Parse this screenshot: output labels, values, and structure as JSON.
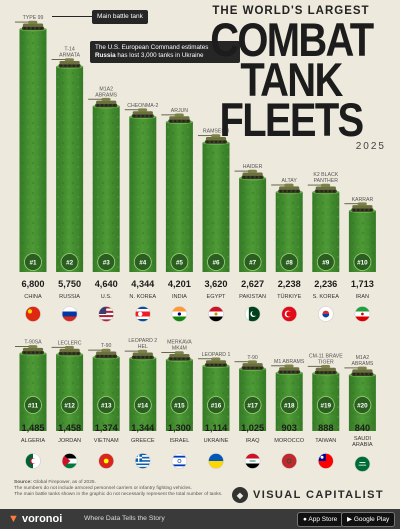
{
  "header": {
    "title_top": "THE WORLD'S LARGEST",
    "title_line1": "COMBAT",
    "title_line2": "TANK FLEETS",
    "year": "2025"
  },
  "annotations": {
    "main_battle_tank": "Main battle tank",
    "eucom_line1": "The U.S. European Command estimates",
    "eucom_bold": "Russia",
    "eucom_line2": " has lost 3,000 tanks in Ukraine"
  },
  "chart_data": {
    "type": "bar",
    "ylim": [
      0,
      7000
    ],
    "rows": [
      {
        "items": [
          {
            "rank": "#1",
            "country": "CHINA",
            "value": 6800,
            "value_label": "6,800",
            "tank": "TYPE 99"
          },
          {
            "rank": "#2",
            "country": "RUSSIA",
            "value": 5750,
            "value_label": "5,750",
            "tank": "T-14 ARMATA"
          },
          {
            "rank": "#3",
            "country": "U.S.",
            "value": 4640,
            "value_label": "4,640",
            "tank": "M1A2 ABRAMS"
          },
          {
            "rank": "#4",
            "country": "N. KOREA",
            "value": 4344,
            "value_label": "4,344",
            "tank": "CHEONMA-2"
          },
          {
            "rank": "#5",
            "country": "INDIA",
            "value": 4201,
            "value_label": "4,201",
            "tank": "ARJUN"
          },
          {
            "rank": "#6",
            "country": "EGYPT",
            "value": 3620,
            "value_label": "3,620",
            "tank": "RAMSES II"
          },
          {
            "rank": "#7",
            "country": "PAKISTAN",
            "value": 2627,
            "value_label": "2,627",
            "tank": "HAIDER"
          },
          {
            "rank": "#8",
            "country": "TÜRKIYE",
            "value": 2238,
            "value_label": "2,238",
            "tank": "ALTAY"
          },
          {
            "rank": "#9",
            "country": "S. KOREA",
            "value": 2236,
            "value_label": "2,236",
            "tank": "K2 BLACK PANTHER"
          },
          {
            "rank": "#10",
            "country": "IRAN",
            "value": 1713,
            "value_label": "1,713",
            "tank": "KARRAR"
          }
        ]
      },
      {
        "items": [
          {
            "rank": "#11",
            "country": "ALGERIA",
            "value": 1485,
            "value_label": "1,485",
            "tank": "T-90SA"
          },
          {
            "rank": "#12",
            "country": "JORDAN",
            "value": 1458,
            "value_label": "1,458",
            "tank": "LECLERC"
          },
          {
            "rank": "#13",
            "country": "VIETNAM",
            "value": 1374,
            "value_label": "1,374",
            "tank": "T-90"
          },
          {
            "rank": "#14",
            "country": "GREECE",
            "value": 1344,
            "value_label": "1,344",
            "tank": "LEOPARD 2 HEL"
          },
          {
            "rank": "#15",
            "country": "ISRAEL",
            "value": 1300,
            "value_label": "1,300",
            "tank": "MERKAVA MK4M"
          },
          {
            "rank": "#16",
            "country": "UKRAINE",
            "value": 1114,
            "value_label": "1,114",
            "tank": "LEOPARD 1"
          },
          {
            "rank": "#17",
            "country": "IRAQ",
            "value": 1025,
            "value_label": "1,025",
            "tank": "T-90"
          },
          {
            "rank": "#18",
            "country": "MOROCCO",
            "value": 903,
            "value_label": "903",
            "tank": "M1 ABRAMS"
          },
          {
            "rank": "#19",
            "country": "TAIWAN",
            "value": 888,
            "value_label": "888",
            "tank": "CM-11 BRAVE TIGER"
          },
          {
            "rank": "#20",
            "country": "SAUDI ARABIA",
            "value": 840,
            "value_label": "840",
            "tank": "M1A2 ABRAMS"
          }
        ]
      }
    ]
  },
  "colors": {
    "bar": "#3f8a2e",
    "bar_light": "#5aa53f",
    "rank_circle": "#2e6b22",
    "tank_body": "#5a6033",
    "background": "#ede9dc"
  },
  "flag_icons": {
    "CHINA": "china-flag-icon",
    "RUSSIA": "russia-flag-icon",
    "U.S.": "usa-flag-icon",
    "N. KOREA": "north-korea-flag-icon",
    "INDIA": "india-flag-icon",
    "EGYPT": "egypt-flag-icon",
    "PAKISTAN": "pakistan-flag-icon",
    "TÜRKIYE": "turkiye-flag-icon",
    "S. KOREA": "south-korea-flag-icon",
    "IRAN": "iran-flag-icon",
    "ALGERIA": "algeria-flag-icon",
    "JORDAN": "jordan-flag-icon",
    "VIETNAM": "vietnam-flag-icon",
    "GREECE": "greece-flag-icon",
    "ISRAEL": "israel-flag-icon",
    "UKRAINE": "ukraine-flag-icon",
    "IRAQ": "iraq-flag-icon",
    "MOROCCO": "morocco-flag-icon",
    "TAIWAN": "taiwan-flag-icon",
    "SAUDI ARABIA": "saudi-arabia-flag-icon"
  },
  "footer": {
    "source_label": "Source:",
    "source_text": " Global Firepower, as of 2025.",
    "note_line1": "The numbers do not include armored personnel carriers or infantry fighting vehicles.",
    "note_line2": "The main battle tanks shown in the graphic do not necessarily represent the total number of tanks.",
    "brand": "VISUAL CAPITALIST"
  },
  "bottom_bar": {
    "logo": "voronoi",
    "tagline": "Where Data Tells the Story",
    "app_store": "App Store",
    "google_play": "Google Play"
  }
}
